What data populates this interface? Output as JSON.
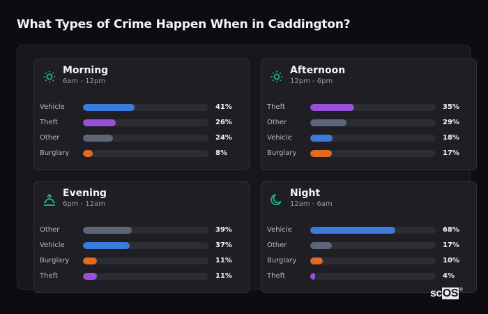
{
  "title": "What Types of Crime Happen When in Caddington?",
  "colors": {
    "Vehicle": "#3a7bdc",
    "Theft": "#9a4fd8",
    "Other": "#5d6678",
    "Burglary": "#e06a1e",
    "accent": "#1fb58c"
  },
  "cards": [
    {
      "name": "Morning",
      "range": "6am - 12pm",
      "icon": "sun-icon",
      "rows": [
        {
          "label": "Vehicle",
          "value": 41,
          "text": "41%"
        },
        {
          "label": "Theft",
          "value": 26,
          "text": "26%"
        },
        {
          "label": "Other",
          "value": 24,
          "text": "24%"
        },
        {
          "label": "Burglary",
          "value": 8,
          "text": "8%"
        }
      ]
    },
    {
      "name": "Afternoon",
      "range": "12pm - 6pm",
      "icon": "sun-icon",
      "rows": [
        {
          "label": "Theft",
          "value": 35,
          "text": "35%"
        },
        {
          "label": "Other",
          "value": 29,
          "text": "29%"
        },
        {
          "label": "Vehicle",
          "value": 18,
          "text": "18%"
        },
        {
          "label": "Burglary",
          "value": 17,
          "text": "17%"
        }
      ]
    },
    {
      "name": "Evening",
      "range": "6pm - 12am",
      "icon": "sunset-icon",
      "rows": [
        {
          "label": "Other",
          "value": 39,
          "text": "39%"
        },
        {
          "label": "Vehicle",
          "value": 37,
          "text": "37%"
        },
        {
          "label": "Burglary",
          "value": 11,
          "text": "11%"
        },
        {
          "label": "Theft",
          "value": 11,
          "text": "11%"
        }
      ]
    },
    {
      "name": "Night",
      "range": "12am - 6am",
      "icon": "moon-icon",
      "rows": [
        {
          "label": "Vehicle",
          "value": 68,
          "text": "68%"
        },
        {
          "label": "Other",
          "value": 17,
          "text": "17%"
        },
        {
          "label": "Burglary",
          "value": 10,
          "text": "10%"
        },
        {
          "label": "Theft",
          "value": 4,
          "text": "4%"
        }
      ]
    }
  ],
  "logo": {
    "sc": "sc",
    "os": "OS",
    "mark": "®"
  },
  "chart_data": {
    "type": "bar",
    "title": "What Types of Crime Happen When in Caddington?",
    "orientation": "horizontal",
    "unit": "%",
    "xlim": [
      0,
      100
    ],
    "panels": [
      {
        "title": "Morning",
        "subtitle": "6am - 12pm",
        "categories": [
          "Vehicle",
          "Theft",
          "Other",
          "Burglary"
        ],
        "values": [
          41,
          26,
          24,
          8
        ]
      },
      {
        "title": "Afternoon",
        "subtitle": "12pm - 6pm",
        "categories": [
          "Theft",
          "Other",
          "Vehicle",
          "Burglary"
        ],
        "values": [
          35,
          29,
          18,
          17
        ]
      },
      {
        "title": "Evening",
        "subtitle": "6pm - 12am",
        "categories": [
          "Other",
          "Vehicle",
          "Burglary",
          "Theft"
        ],
        "values": [
          39,
          37,
          11,
          11
        ]
      },
      {
        "title": "Night",
        "subtitle": "12am - 6am",
        "categories": [
          "Vehicle",
          "Other",
          "Burglary",
          "Theft"
        ],
        "values": [
          68,
          17,
          10,
          4
        ]
      }
    ]
  }
}
